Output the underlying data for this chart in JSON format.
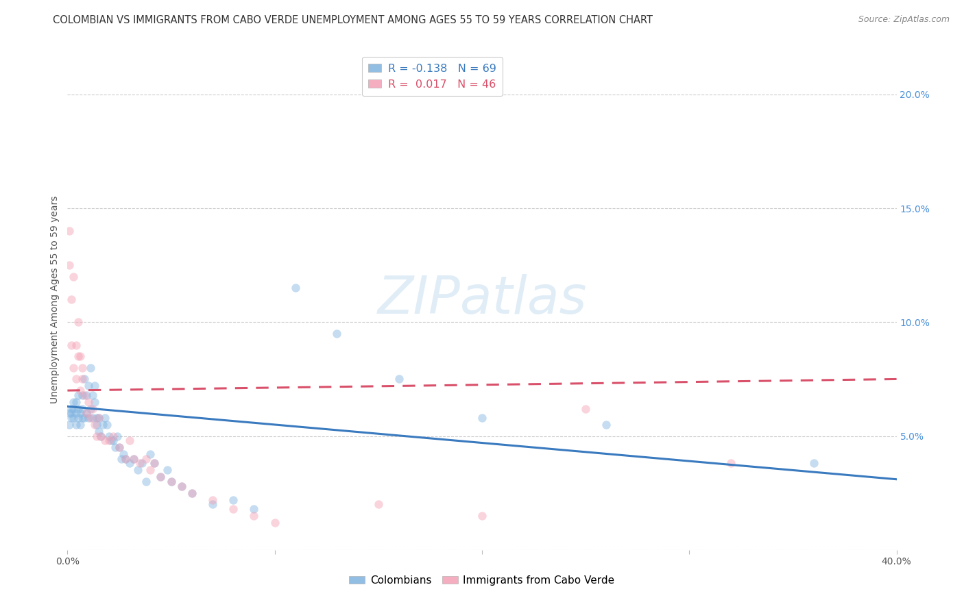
{
  "title": "COLOMBIAN VS IMMIGRANTS FROM CABO VERDE UNEMPLOYMENT AMONG AGES 55 TO 59 YEARS CORRELATION CHART",
  "source": "Source: ZipAtlas.com",
  "ylabel": "Unemployment Among Ages 55 to 59 years",
  "xlim": [
    0.0,
    0.4
  ],
  "ylim": [
    0.0,
    0.22
  ],
  "xticks": [
    0.0,
    0.1,
    0.2,
    0.3,
    0.4
  ],
  "xticklabels": [
    "0.0%",
    "",
    "",
    "",
    "40.0%"
  ],
  "yticks_right": [
    0.0,
    0.05,
    0.1,
    0.15,
    0.2
  ],
  "yticklabels_right": [
    "",
    "5.0%",
    "10.0%",
    "15.0%",
    "20.0%"
  ],
  "watermark": "ZIPatlas",
  "blue_color": "#7fb3e0",
  "pink_color": "#f4a0b5",
  "blue_line_color": "#3a7abf",
  "pink_line_color": "#d9506a",
  "legend_R_blue": "-0.138",
  "legend_N_blue": "69",
  "legend_R_pink": "0.017",
  "legend_N_pink": "46",
  "blue_scatter_x": [
    0.001,
    0.001,
    0.002,
    0.002,
    0.002,
    0.003,
    0.003,
    0.003,
    0.004,
    0.004,
    0.004,
    0.005,
    0.005,
    0.005,
    0.006,
    0.006,
    0.007,
    0.007,
    0.007,
    0.008,
    0.008,
    0.009,
    0.009,
    0.01,
    0.01,
    0.011,
    0.011,
    0.012,
    0.012,
    0.013,
    0.013,
    0.014,
    0.014,
    0.015,
    0.015,
    0.016,
    0.017,
    0.018,
    0.019,
    0.02,
    0.021,
    0.022,
    0.023,
    0.024,
    0.025,
    0.026,
    0.027,
    0.028,
    0.03,
    0.032,
    0.034,
    0.036,
    0.038,
    0.04,
    0.042,
    0.045,
    0.048,
    0.05,
    0.055,
    0.06,
    0.07,
    0.08,
    0.09,
    0.11,
    0.13,
    0.16,
    0.2,
    0.26,
    0.36
  ],
  "blue_scatter_y": [
    0.055,
    0.06,
    0.06,
    0.062,
    0.058,
    0.058,
    0.062,
    0.065,
    0.055,
    0.06,
    0.065,
    0.058,
    0.062,
    0.068,
    0.055,
    0.06,
    0.058,
    0.062,
    0.068,
    0.058,
    0.075,
    0.06,
    0.068,
    0.058,
    0.072,
    0.062,
    0.08,
    0.068,
    0.058,
    0.065,
    0.072,
    0.058,
    0.055,
    0.052,
    0.058,
    0.05,
    0.055,
    0.058,
    0.055,
    0.05,
    0.048,
    0.048,
    0.045,
    0.05,
    0.045,
    0.04,
    0.042,
    0.04,
    0.038,
    0.04,
    0.035,
    0.038,
    0.03,
    0.042,
    0.038,
    0.032,
    0.035,
    0.03,
    0.028,
    0.025,
    0.02,
    0.022,
    0.018,
    0.115,
    0.095,
    0.075,
    0.058,
    0.055,
    0.038
  ],
  "pink_scatter_x": [
    0.001,
    0.001,
    0.002,
    0.002,
    0.003,
    0.003,
    0.004,
    0.004,
    0.005,
    0.005,
    0.006,
    0.006,
    0.007,
    0.007,
    0.008,
    0.009,
    0.01,
    0.011,
    0.012,
    0.013,
    0.014,
    0.015,
    0.016,
    0.018,
    0.02,
    0.022,
    0.025,
    0.028,
    0.03,
    0.032,
    0.035,
    0.038,
    0.04,
    0.042,
    0.045,
    0.05,
    0.055,
    0.06,
    0.07,
    0.08,
    0.09,
    0.1,
    0.15,
    0.2,
    0.25,
    0.32
  ],
  "pink_scatter_y": [
    0.125,
    0.14,
    0.11,
    0.09,
    0.08,
    0.12,
    0.075,
    0.09,
    0.085,
    0.1,
    0.07,
    0.085,
    0.08,
    0.075,
    0.068,
    0.06,
    0.065,
    0.058,
    0.062,
    0.055,
    0.05,
    0.058,
    0.05,
    0.048,
    0.048,
    0.05,
    0.045,
    0.04,
    0.048,
    0.04,
    0.038,
    0.04,
    0.035,
    0.038,
    0.032,
    0.03,
    0.028,
    0.025,
    0.022,
    0.018,
    0.015,
    0.012,
    0.02,
    0.015,
    0.062,
    0.038
  ],
  "blue_trend_y_start": 0.063,
  "blue_trend_y_end": 0.031,
  "pink_trend_y_start": 0.07,
  "pink_trend_y_end": 0.075,
  "grid_color": "#cccccc",
  "background_color": "#ffffff",
  "title_fontsize": 10.5,
  "axis_label_fontsize": 10,
  "tick_fontsize": 10,
  "right_tick_color": "#4a90d9",
  "scatter_size": 80,
  "scatter_alpha": 0.45
}
